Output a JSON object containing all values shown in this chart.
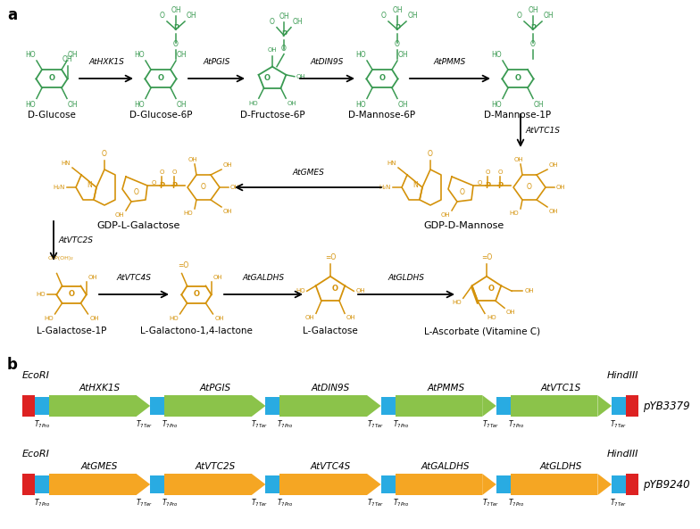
{
  "fig_width": 7.84,
  "fig_height": 5.93,
  "bg_color": "#ffffff",
  "green": "#3a9a52",
  "orange": "#d4920a",
  "arrow_green": "#8bc34a",
  "arrow_orange": "#f5a623",
  "spacer_blue": "#29abe2",
  "end_red": "#dd2222",
  "construct1_genes": [
    "AtHXK1S",
    "AtPGIS",
    "AtDIN9S",
    "AtPMMS",
    "AtVTC1S"
  ],
  "construct2_genes": [
    "AtGMES",
    "AtVTC2S",
    "AtVTC4S",
    "AtGALDHS",
    "AtGLDHS"
  ],
  "construct1_name": "pYB3379",
  "construct2_name": "pYB9240",
  "row1_labels": [
    "D-Glucose",
    "D-Glucose-6P",
    "D-Fructose-6P",
    "D-Mannose-6P",
    "D-Mannose-1P"
  ],
  "row1_enzymes": [
    "AtHXK1S",
    "AtPGIS",
    "AtDIN9S",
    "AtPMMS"
  ],
  "vtc1s": "AtVTC1S",
  "gmes": "AtGMES",
  "vtc2s": "AtVTC2S",
  "gdp_gal_label": "GDP-L-Galactose",
  "gdp_man_label": "GDP-D-Mannose",
  "row3_labels": [
    "L-Galactose-1P",
    "L-Galactono-1,4-lactone",
    "L-Galactose",
    "L-Ascorbate (Vitamine C)"
  ],
  "row3_enzymes": [
    "AtVTC4S",
    "AtGALDHS",
    "AtGLDHS"
  ],
  "panel_a": "a",
  "panel_b": "b"
}
